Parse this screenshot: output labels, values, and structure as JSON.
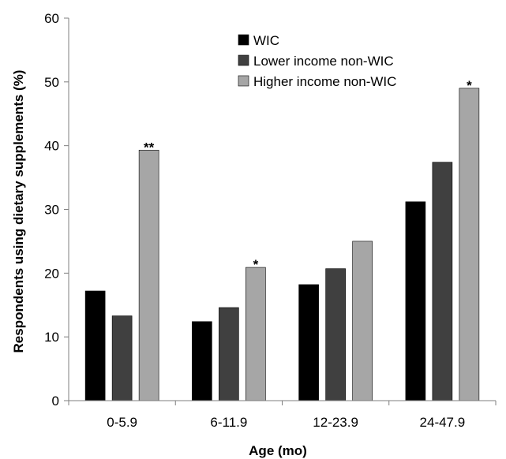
{
  "chart_data": {
    "type": "bar",
    "title": "",
    "xlabel": "Age (mo)",
    "ylabel": "Respondents using dietary supplements (%)",
    "ylim": [
      0,
      60
    ],
    "yticks": [
      0,
      10,
      20,
      30,
      40,
      50,
      60
    ],
    "grid": false,
    "legend_position": "top-center",
    "categories": [
      "0-5.9",
      "6-11.9",
      "12-23.9",
      "24-47.9"
    ],
    "series": [
      {
        "name": "WIC",
        "color": "#000000",
        "values": [
          17.2,
          12.4,
          18.2,
          31.2
        ]
      },
      {
        "name": "Lower income non-WIC",
        "color": "#404040",
        "values": [
          13.3,
          14.6,
          20.7,
          37.4
        ]
      },
      {
        "name": "Higher income non-WIC",
        "color": "#a6a6a6",
        "values": [
          39.3,
          20.9,
          25.0,
          49.0
        ]
      }
    ],
    "annotations": [
      "**",
      "*",
      "",
      "*"
    ]
  }
}
